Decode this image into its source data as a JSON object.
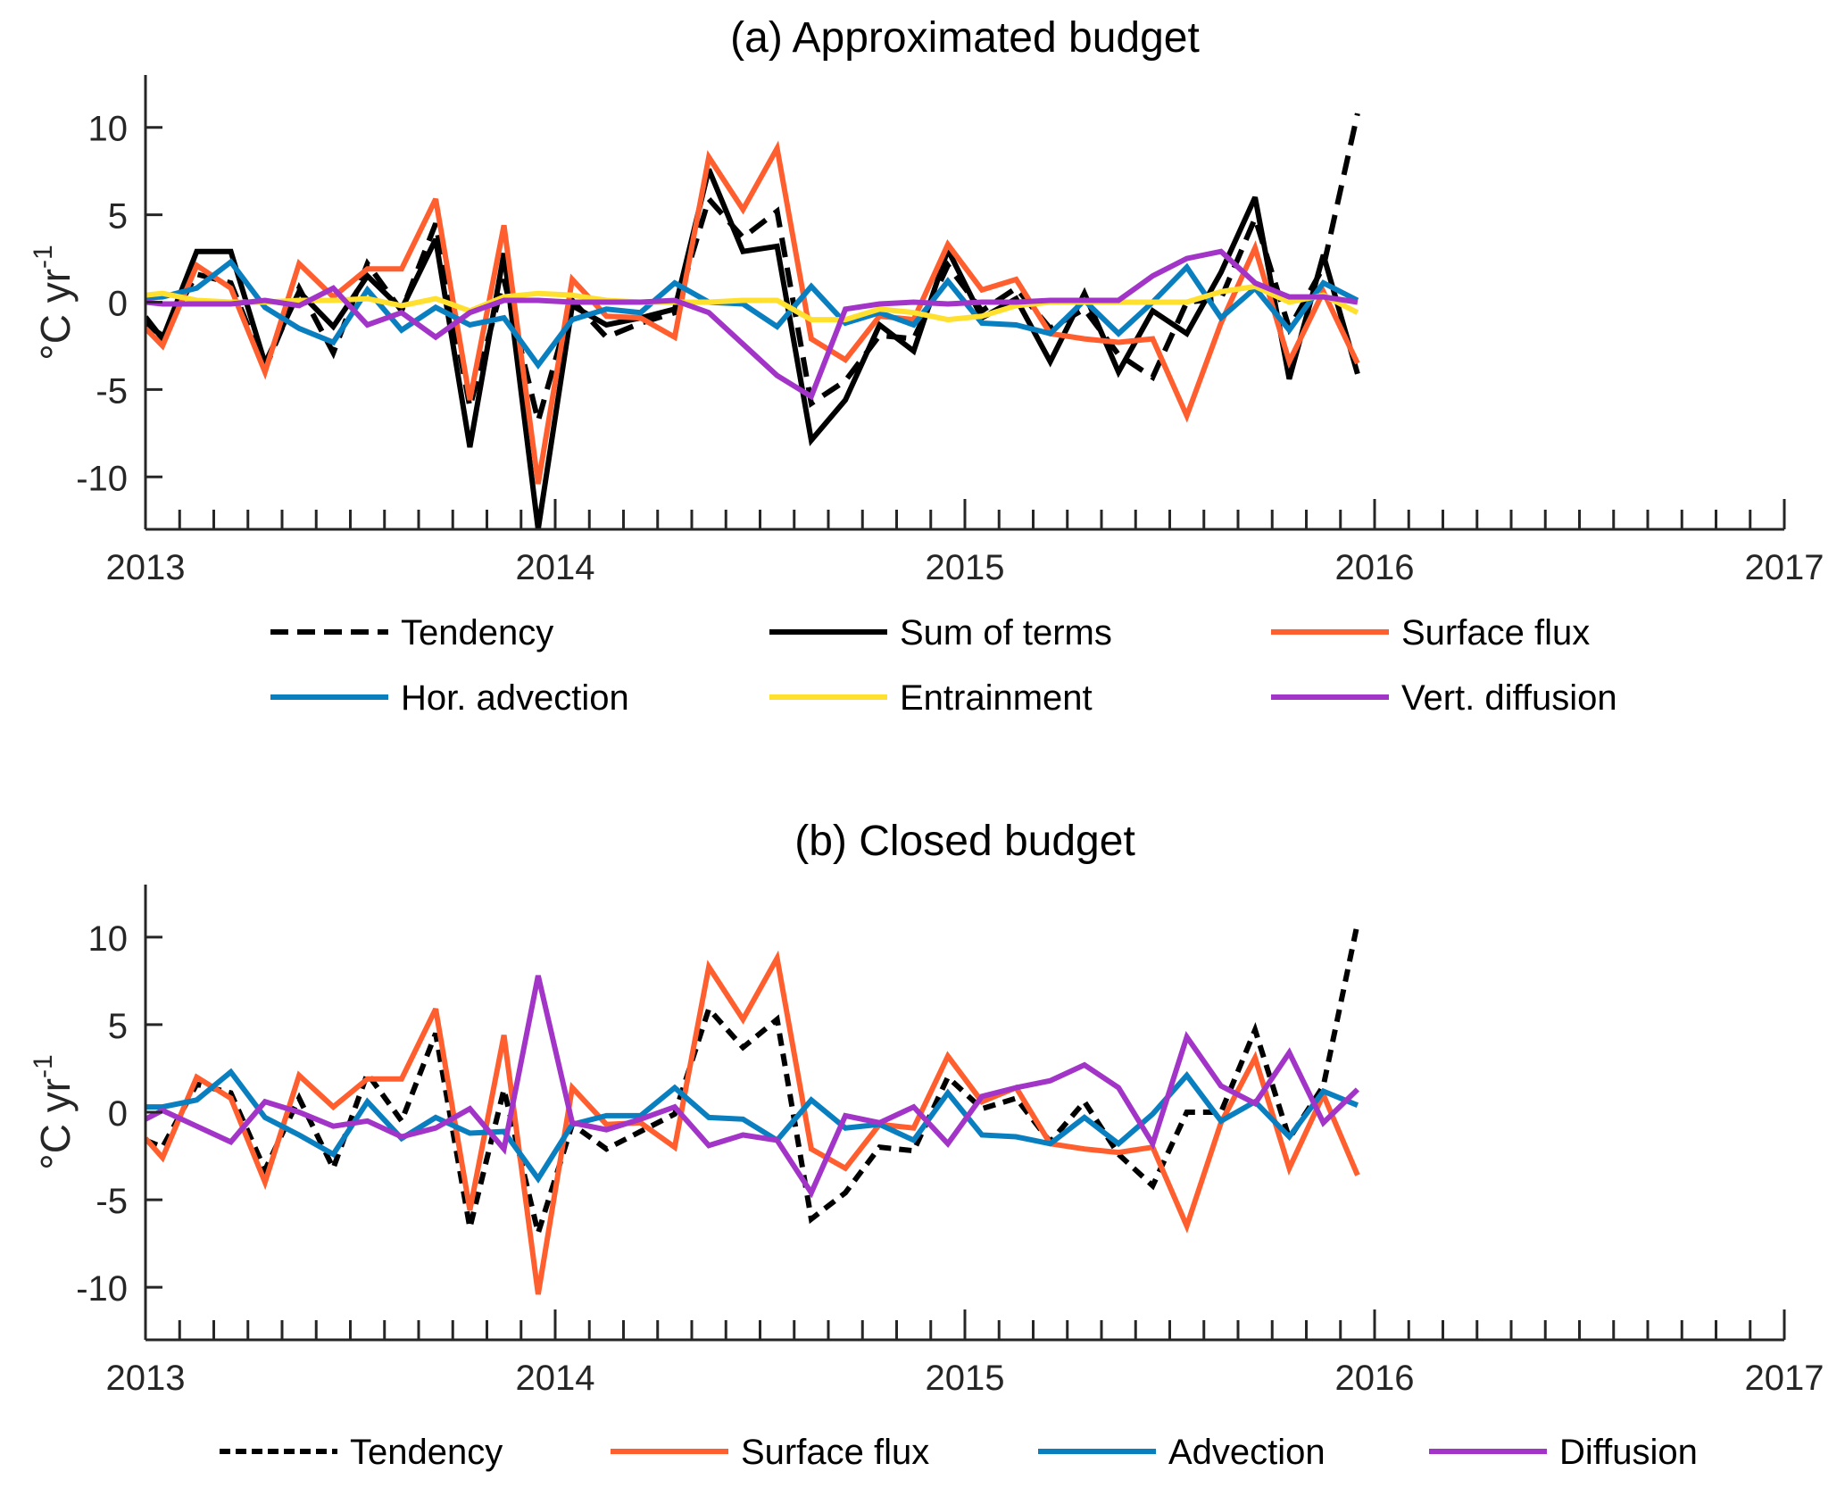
{
  "chart_data": [
    {
      "type": "line",
      "title": "(a) Approximated budget",
      "xlabel": "",
      "ylabel": "°C yr",
      "ylabel_superscript": "-1",
      "xlim": [
        2013,
        2017
      ],
      "ylim": [
        -13,
        13
      ],
      "xticks": [
        2013,
        2014,
        2015,
        2016,
        2017
      ],
      "xtick_labels": [
        "2013",
        "2014",
        "2015",
        "2016",
        "2017"
      ],
      "yticks": [
        -10,
        -5,
        0,
        5,
        10
      ],
      "ytick_labels": [
        "-10",
        "-5",
        "0",
        "5",
        "10"
      ],
      "minor_xticks": "monthly",
      "grid": false,
      "legend_position": "bottom",
      "x_description": "monthly values, mid-month, Jan 2013 - Dec 2015; first value at 2013.0",
      "x_start": 2013.0,
      "series": [
        {
          "name": "Tendency",
          "color": "#000000",
          "style": "dashed",
          "start": -1.3,
          "values": [
            -1.9,
            1.6,
            1.1,
            -3.8,
            0.8,
            -2.9,
            2.2,
            -0.5,
            4.5,
            -6.0,
            1.3,
            -6.8,
            0.1,
            -2.0,
            -1.2,
            -0.6,
            5.9,
            3.7,
            5.2,
            -5.8,
            -4.5,
            -1.9,
            -2.1,
            2.1,
            -0.5,
            0.8,
            -1.5,
            -0.4,
            -3.0,
            -4.3,
            0.0,
            0.2,
            4.8,
            -1.5,
            2.0,
            10.8
          ]
        },
        {
          "name": "Sum of terms",
          "color": "#000000",
          "style": "solid",
          "start": -0.85,
          "values": [
            -2.1,
            2.9,
            2.9,
            -3.5,
            0.6,
            -1.4,
            1.5,
            -0.4,
            3.6,
            -8.3,
            2.8,
            -13.0,
            -0.2,
            -1.3,
            -0.9,
            -0.4,
            7.6,
            2.9,
            3.2,
            -7.9,
            -5.6,
            -1.3,
            -2.8,
            3.0,
            -0.9,
            0.2,
            -3.4,
            0.5,
            -4.0,
            -0.5,
            -1.8,
            1.7,
            6.0,
            -4.4,
            2.7,
            -4.1
          ]
        },
        {
          "name": "Surface flux",
          "color": "#FF5F2E",
          "style": "solid",
          "start": -1.5,
          "values": [
            -2.5,
            2.1,
            0.8,
            -4.0,
            2.2,
            0.3,
            1.9,
            1.9,
            5.9,
            -5.6,
            4.4,
            -10.4,
            1.3,
            -0.8,
            -0.9,
            -2.0,
            8.3,
            5.3,
            8.8,
            -2.1,
            -3.3,
            -0.8,
            -1.0,
            3.3,
            0.7,
            1.3,
            -1.8,
            -2.1,
            -2.3,
            -2.1,
            -6.5,
            -1.2,
            3.1,
            -3.4,
            0.6,
            -3.5
          ]
        },
        {
          "name": "Hor. advection",
          "color": "#0A7FC0",
          "style": "solid",
          "start": 0.25,
          "values": [
            0.3,
            0.8,
            2.3,
            -0.3,
            -1.5,
            -2.3,
            0.7,
            -1.6,
            -0.3,
            -1.3,
            -0.9,
            -3.6,
            -1.0,
            -0.4,
            -0.6,
            1.1,
            0.0,
            -0.1,
            -1.4,
            0.9,
            -1.2,
            -0.6,
            -1.3,
            1.2,
            -1.2,
            -1.3,
            -1.8,
            0.1,
            -1.8,
            0.0,
            2.0,
            -0.9,
            0.8,
            -1.6,
            1.1,
            0.1
          ]
        },
        {
          "name": "Entrainment",
          "color": "#FFE02E",
          "style": "solid",
          "start": 0.4,
          "values": [
            0.5,
            0.1,
            0.0,
            0.0,
            0.1,
            0.1,
            0.2,
            -0.2,
            0.2,
            -0.5,
            0.3,
            0.5,
            0.4,
            0.1,
            0.0,
            0.0,
            0.0,
            0.1,
            0.1,
            -1.0,
            -1.0,
            -0.4,
            -0.6,
            -1.0,
            -0.8,
            -0.2,
            0.0,
            0.0,
            0.0,
            0.0,
            0.0,
            0.6,
            0.9,
            0.0,
            0.4,
            -0.6
          ]
        },
        {
          "name": "Vert. diffusion",
          "color": "#A235C8",
          "style": "solid",
          "start": 0.0,
          "values": [
            -0.1,
            -0.1,
            -0.1,
            0.1,
            -0.2,
            0.8,
            -1.3,
            -0.6,
            -2.0,
            -0.6,
            0.1,
            0.1,
            0.0,
            0.0,
            0.0,
            0.1,
            -0.6,
            -2.4,
            -4.2,
            -5.4,
            -0.4,
            -0.1,
            0.0,
            -0.1,
            0.0,
            0.0,
            0.1,
            0.1,
            0.1,
            1.5,
            2.5,
            2.9,
            1.1,
            0.3,
            0.3,
            0.0
          ]
        }
      ]
    },
    {
      "type": "line",
      "title": "(b) Closed budget",
      "xlabel": "",
      "ylabel": "°C yr",
      "ylabel_superscript": "-1",
      "xlim": [
        2013,
        2017
      ],
      "ylim": [
        -13,
        13
      ],
      "xticks": [
        2013,
        2014,
        2015,
        2016,
        2017
      ],
      "xtick_labels": [
        "2013",
        "2014",
        "2015",
        "2016",
        "2017"
      ],
      "yticks": [
        -10,
        -5,
        0,
        5,
        10
      ],
      "ytick_labels": [
        "-10",
        "-5",
        "0",
        "5",
        "10"
      ],
      "minor_xticks": "monthly",
      "grid": false,
      "legend_position": "bottom",
      "x_description": "monthly values, mid-month, Jan 2013 - Dec 2015; first value at 2013.0",
      "x_start": 2013.0,
      "series": [
        {
          "name": "Tendency",
          "color": "#000000",
          "style": "dotted-dashed",
          "start": -1.6,
          "values": [
            -2.0,
            1.6,
            1.1,
            -3.3,
            0.8,
            -3.2,
            2.2,
            -0.5,
            4.5,
            -6.6,
            1.3,
            -6.9,
            -0.7,
            -2.1,
            -1.1,
            -0.1,
            5.9,
            3.7,
            5.3,
            -6.1,
            -4.6,
            -2.0,
            -2.2,
            2.0,
            0.2,
            0.8,
            -1.7,
            0.6,
            -2.4,
            -4.2,
            0.0,
            0.0,
            4.7,
            -1.5,
            1.5,
            10.8
          ]
        },
        {
          "name": "Surface flux",
          "color": "#FF5F2E",
          "style": "solid",
          "start": -1.5,
          "values": [
            -2.6,
            2.0,
            0.8,
            -4.0,
            2.1,
            0.3,
            1.9,
            1.9,
            5.9,
            -5.6,
            4.4,
            -10.4,
            1.4,
            -0.7,
            -0.6,
            -2.0,
            8.3,
            5.3,
            8.8,
            -2.1,
            -3.2,
            -0.7,
            -0.9,
            3.2,
            0.6,
            1.4,
            -1.8,
            -2.1,
            -2.3,
            -2.0,
            -6.5,
            -0.6,
            3.1,
            -3.2,
            1.0,
            -3.6
          ]
        },
        {
          "name": "Advection",
          "color": "#0A7FC0",
          "style": "solid",
          "start": 0.3,
          "values": [
            0.3,
            0.7,
            2.3,
            -0.3,
            -1.3,
            -2.4,
            0.6,
            -1.5,
            -0.3,
            -1.2,
            -1.1,
            -3.8,
            -0.7,
            -0.2,
            -0.2,
            1.4,
            -0.3,
            -0.4,
            -1.6,
            0.7,
            -0.9,
            -0.7,
            -1.6,
            1.1,
            -1.3,
            -1.4,
            -1.8,
            -0.3,
            -1.8,
            -0.1,
            2.1,
            -0.5,
            0.6,
            -1.4,
            1.2,
            0.4
          ]
        },
        {
          "name": "Diffusion",
          "color": "#A235C8",
          "style": "solid",
          "start": -0.4,
          "values": [
            0.1,
            -0.8,
            -1.7,
            0.6,
            0.0,
            -0.8,
            -0.5,
            -1.4,
            -0.9,
            0.2,
            -2.1,
            7.8,
            -0.6,
            -1.0,
            -0.4,
            0.3,
            -1.9,
            -1.3,
            -1.6,
            -4.6,
            -0.2,
            -0.6,
            0.3,
            -1.8,
            0.9,
            1.4,
            1.8,
            2.7,
            1.4,
            -1.8,
            4.3,
            1.5,
            0.5,
            3.4,
            -0.6,
            1.3
          ]
        }
      ]
    }
  ]
}
